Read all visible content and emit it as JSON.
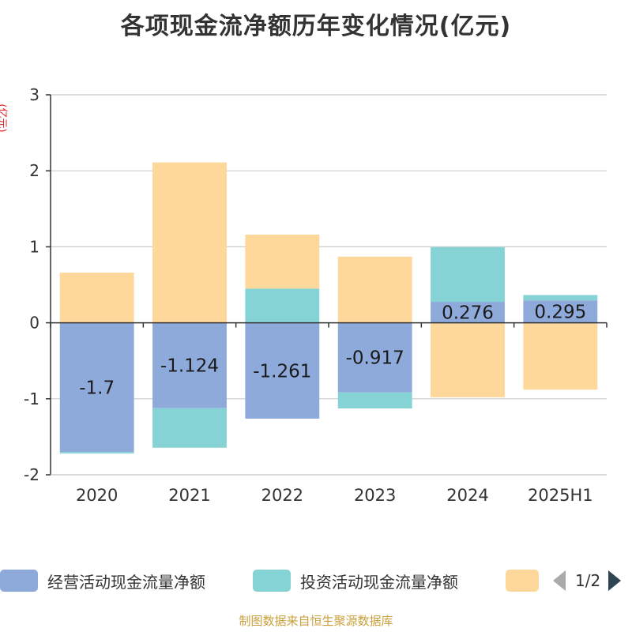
{
  "title": "各项现金流净额历年变化情况(亿元)",
  "unit_label": "(亿元)",
  "source": "制图数据来自恒生聚源数据库",
  "legend": {
    "items": [
      {
        "label": "经营活动现金流量净额",
        "color": "#8eaadb"
      },
      {
        "label": "投资活动现金流量净额",
        "color": "#86d3d6"
      },
      {
        "label": "",
        "color": "#fdd89a"
      }
    ],
    "page": "1/2"
  },
  "chart_data": {
    "type": "bar",
    "stacked": true,
    "categories": [
      "2020",
      "2021",
      "2022",
      "2023",
      "2024",
      "2025H1"
    ],
    "ylim": [
      -2,
      3
    ],
    "yticks": [
      -2,
      -1,
      0,
      1,
      2,
      3
    ],
    "grid": true,
    "legend_position": "bottom",
    "series": [
      {
        "name": "经营活动现金流量净额",
        "color": "#8eaadb",
        "values": [
          -1.7,
          -1.124,
          -1.261,
          -0.917,
          0.276,
          0.295
        ],
        "labels": [
          "-1.7",
          "-1.124",
          "-1.261",
          "-0.917",
          "0.276",
          "0.295"
        ]
      },
      {
        "name": "投资活动现金流量净额",
        "color": "#86d3d6",
        "values": [
          -0.02,
          -0.52,
          0.45,
          -0.21,
          0.72,
          0.07
        ]
      },
      {
        "name": "",
        "color": "#fdd89a",
        "values": [
          0.66,
          2.11,
          0.71,
          0.87,
          -0.98,
          -0.88
        ]
      }
    ]
  }
}
